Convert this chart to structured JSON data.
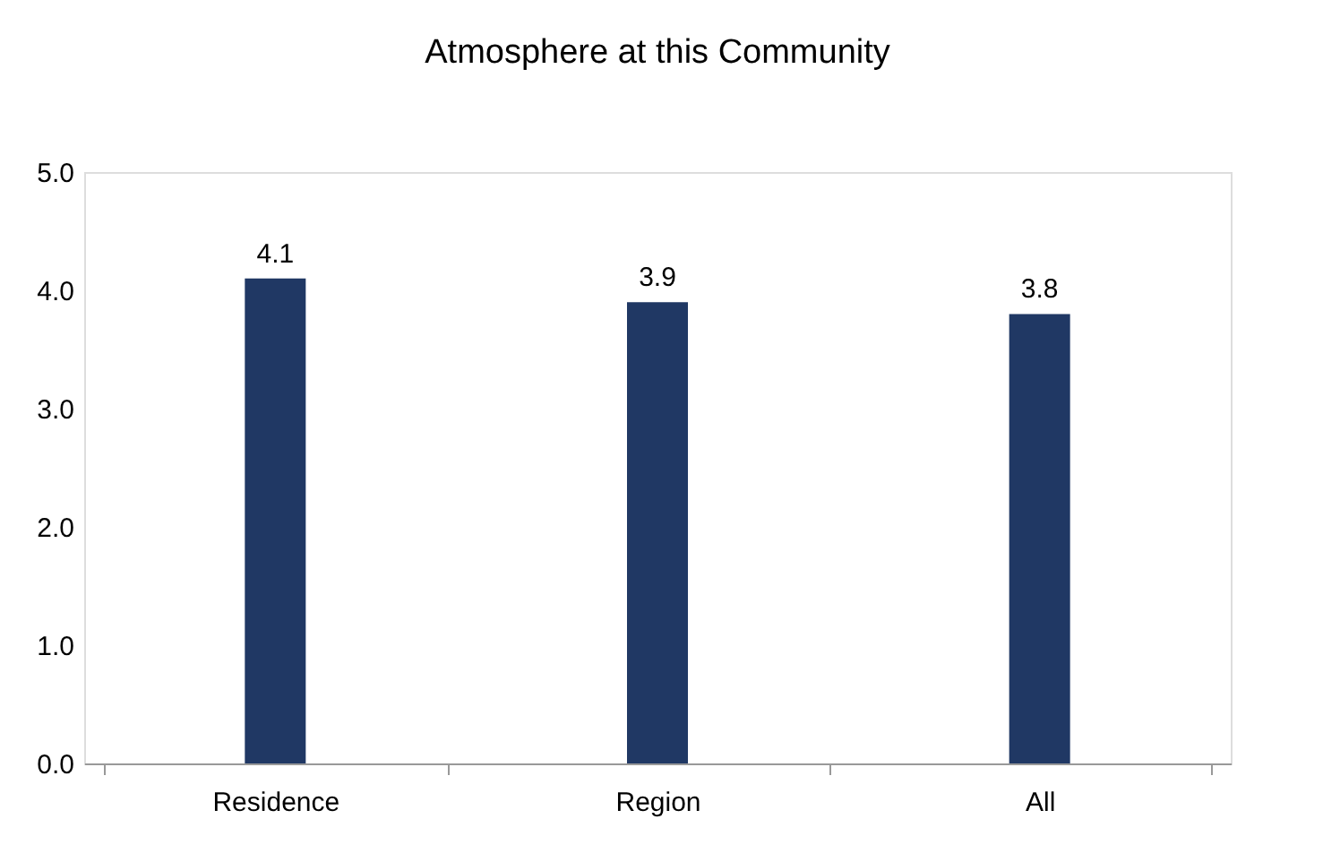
{
  "chart_data": {
    "type": "bar",
    "title": "Atmosphere at this Community",
    "categories": [
      "Residence",
      "Region",
      "All"
    ],
    "values": [
      4.1,
      3.9,
      3.8
    ],
    "color": "#203864",
    "ylim": [
      0,
      5
    ],
    "yticks": [
      {
        "value": 0,
        "label": "0.0"
      },
      {
        "value": 1,
        "label": "1.0"
      },
      {
        "value": 2,
        "label": "2.0"
      },
      {
        "value": 3,
        "label": "3.0"
      },
      {
        "value": 4,
        "label": "4.0"
      },
      {
        "value": 5,
        "label": "5.0"
      }
    ],
    "grid": false,
    "data_labels": true
  }
}
